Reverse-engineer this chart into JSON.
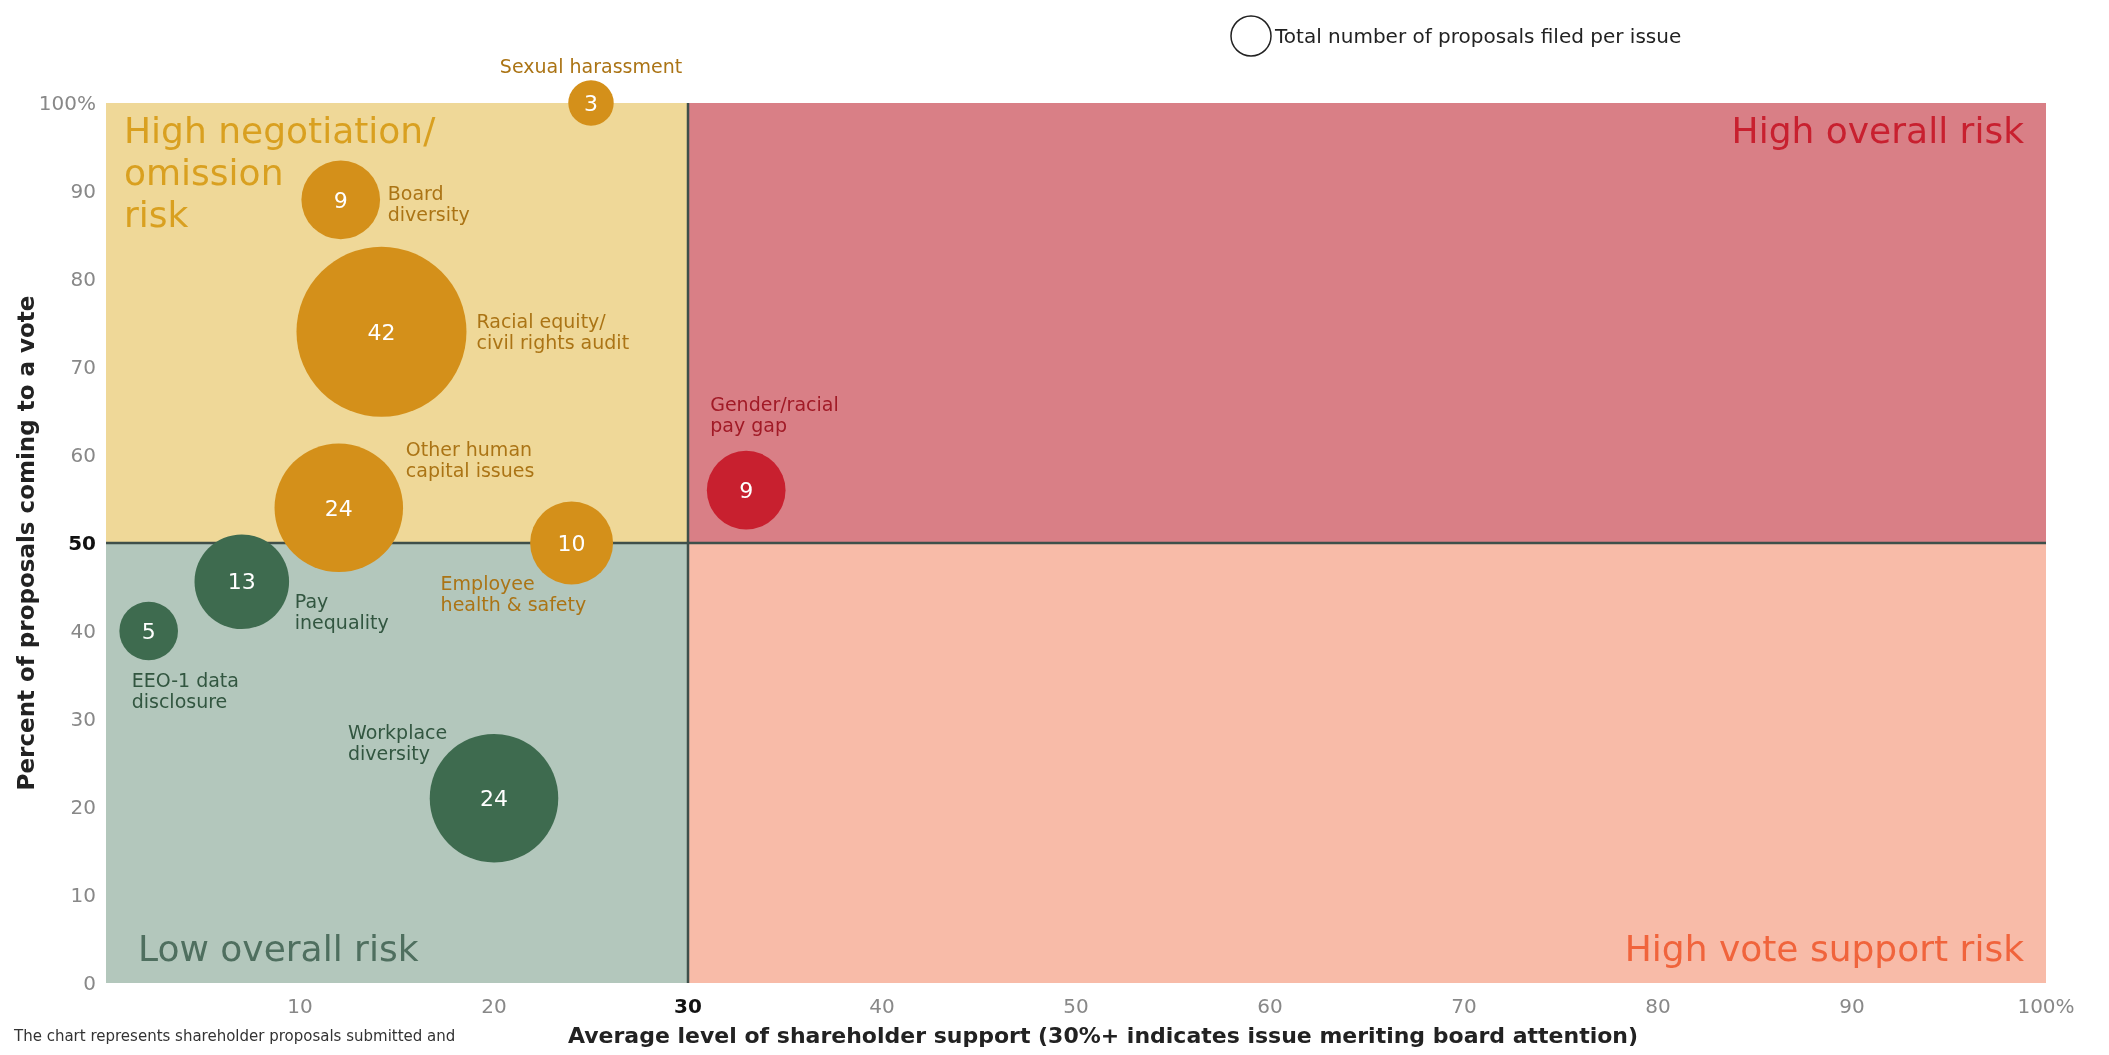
{
  "chart_data": {
    "type": "bubble",
    "xlabel": "Average level of shareholder support (30%+ indicates issue meriting board attention)",
    "ylabel": "Percent of proposals coming to a vote",
    "legend_title": "Total number of proposals filed per issue",
    "xlim": [
      0,
      100
    ],
    "ylim": [
      0,
      100
    ],
    "xticks": [
      10,
      20,
      30,
      40,
      50,
      60,
      70,
      80,
      90,
      {
        "value": 100,
        "label": "100%"
      }
    ],
    "yticks": [
      0,
      10,
      20,
      30,
      40,
      50,
      60,
      70,
      80,
      90,
      {
        "value": 100,
        "label": "100%"
      }
    ],
    "ref_lines": [
      {
        "axis": "x",
        "value": 30,
        "color": "#3f4f4a"
      },
      {
        "axis": "y",
        "value": 50,
        "color": "#3f4f4a"
      }
    ],
    "series": [
      {
        "name": "Sexual harassment",
        "color": "#d4901a",
        "x": [
          25
        ],
        "values": [
          100
        ],
        "sizes": [
          3
        ],
        "value_labels": [
          "3"
        ]
      },
      {
        "name": "Board\ndiversity",
        "color": "#d4901a",
        "x": [
          12.1
        ],
        "values": [
          89
        ],
        "sizes": [
          9
        ],
        "value_labels": [
          "9"
        ]
      },
      {
        "name": "Racial equity/\ncivil rights audit",
        "color": "#d4901a",
        "x": [
          14.2
        ],
        "values": [
          74
        ],
        "sizes": [
          42
        ],
        "value_labels": [
          "42"
        ]
      },
      {
        "name": "Other human\ncapital issues",
        "color": "#d4901a",
        "x": [
          12
        ],
        "values": [
          54
        ],
        "sizes": [
          24
        ],
        "value_labels": [
          "24"
        ]
      },
      {
        "name": "Employee\nhealth & safety",
        "color": "#d4901a",
        "x": [
          24
        ],
        "values": [
          50
        ],
        "sizes": [
          10
        ],
        "value_labels": [
          "10"
        ]
      },
      {
        "name": "Pay\ninequality",
        "color": "#3e6b4f",
        "x": [
          7
        ],
        "values": [
          45.6
        ],
        "sizes": [
          13
        ],
        "value_labels": [
          "13"
        ]
      },
      {
        "name": "EEO-1 data\ndisclosure",
        "color": "#3e6b4f",
        "x": [
          2.2
        ],
        "values": [
          40
        ],
        "sizes": [
          5
        ],
        "value_labels": [
          "5"
        ]
      },
      {
        "name": "Workplace\ndiversity",
        "color": "#3e6b4f",
        "x": [
          20
        ],
        "values": [
          21
        ],
        "sizes": [
          24
        ],
        "value_labels": [
          "24"
        ]
      },
      {
        "name": "Gender/racial\npay gap",
        "color": "#c8202f",
        "x": [
          33
        ],
        "values": [
          56
        ],
        "sizes": [
          9
        ],
        "value_labels": [
          "9"
        ]
      }
    ],
    "annotations": [
      "High negotiation/\nomission\nrisk",
      "High overall risk",
      "Low overall risk",
      "High vote support risk",
      "The chart represents shareholder proposals submitted and"
    ]
  }
}
